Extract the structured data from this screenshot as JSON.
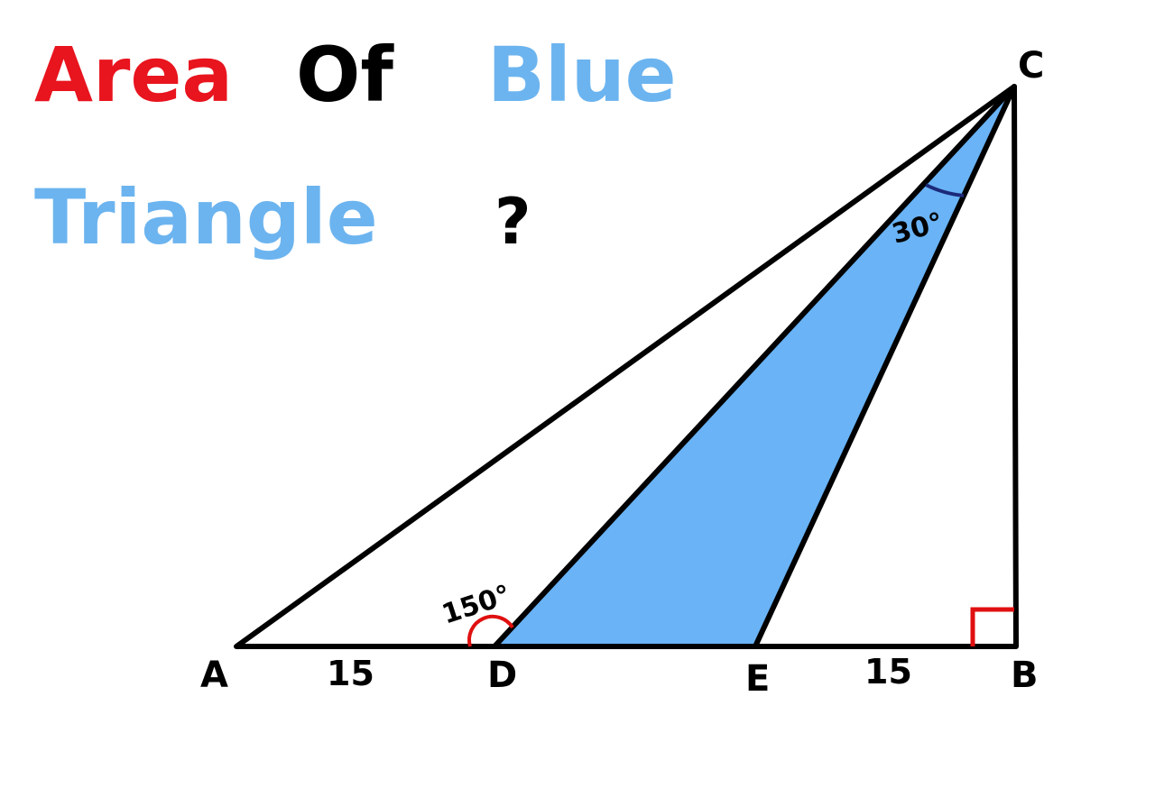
{
  "title": {
    "word1": "Area",
    "word2": "Of",
    "word3": "Blue",
    "word4": "Triangle",
    "question_mark": "?"
  },
  "colors": {
    "word1": "#e8141e",
    "word2": "#000000",
    "word3": "#6cb4ef",
    "word4": "#6cb4ef",
    "blue_fill": "#69b3f6",
    "angle_150": "#e01010",
    "angle_30": "#1c2a7a",
    "right_angle": "#e01010",
    "lines": "#000000"
  },
  "points": {
    "A": "A",
    "B": "B",
    "C": "C",
    "D": "D",
    "E": "E"
  },
  "segments": {
    "AD": "15",
    "EB": "15"
  },
  "angles": {
    "ADC": "150°",
    "DCE": "30°"
  }
}
